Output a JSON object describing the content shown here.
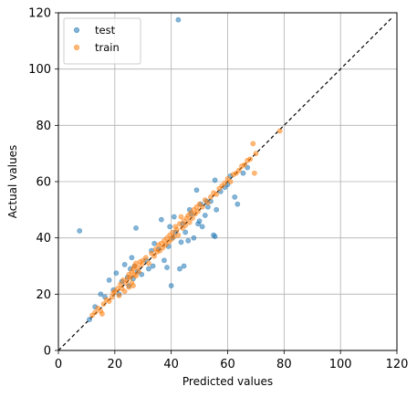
{
  "chart_data": {
    "type": "scatter",
    "title": "",
    "xlabel": "Predicted values",
    "ylabel": "Actual values",
    "xlim": [
      0,
      120
    ],
    "ylim": [
      0,
      120
    ],
    "xticks": [
      "0",
      "20",
      "40",
      "60",
      "80",
      "100",
      "120"
    ],
    "yticks": [
      "0",
      "20",
      "40",
      "60",
      "80",
      "100",
      "120"
    ],
    "grid": true,
    "legend_position": "top-left",
    "reference_line": {
      "style": "dashed",
      "color": "#000000",
      "from": [
        0,
        0
      ],
      "to": [
        118,
        118
      ]
    },
    "series": [
      {
        "name": "test",
        "color": "#1f77b4",
        "points": [
          [
            7.5,
            42.5
          ],
          [
            11,
            11
          ],
          [
            13,
            15.5
          ],
          [
            15,
            20
          ],
          [
            16.5,
            19
          ],
          [
            18,
            25
          ],
          [
            19.5,
            21.5
          ],
          [
            20.5,
            27.5
          ],
          [
            21.5,
            20
          ],
          [
            22.5,
            24.5
          ],
          [
            23.5,
            30.5
          ],
          [
            24.5,
            26
          ],
          [
            25,
            23
          ],
          [
            25.5,
            29
          ],
          [
            26,
            33
          ],
          [
            26.5,
            25.5
          ],
          [
            27,
            30
          ],
          [
            27.5,
            43.5
          ],
          [
            28,
            28
          ],
          [
            29.5,
            27
          ],
          [
            31,
            32
          ],
          [
            32,
            29
          ],
          [
            33,
            35.5
          ],
          [
            33.5,
            30
          ],
          [
            34,
            38
          ],
          [
            35.5,
            36
          ],
          [
            36.5,
            46.5
          ],
          [
            37.5,
            32
          ],
          [
            38.5,
            29.5
          ],
          [
            39,
            37
          ],
          [
            39.5,
            44
          ],
          [
            40,
            23
          ],
          [
            40.5,
            40
          ],
          [
            41,
            47.5
          ],
          [
            41.5,
            42
          ],
          [
            42.5,
            117.5
          ],
          [
            43,
            29
          ],
          [
            43.5,
            38.5
          ],
          [
            44,
            45
          ],
          [
            44.5,
            30
          ],
          [
            45,
            42
          ],
          [
            46,
            39
          ],
          [
            46.5,
            50
          ],
          [
            47,
            48.5
          ],
          [
            48,
            40
          ],
          [
            49,
            57
          ],
          [
            49.5,
            45
          ],
          [
            50,
            46
          ],
          [
            50.5,
            52
          ],
          [
            51,
            44
          ],
          [
            52,
            48
          ],
          [
            52.5,
            53
          ],
          [
            53,
            51
          ],
          [
            54,
            53
          ],
          [
            55,
            41
          ],
          [
            55.5,
            40.5
          ],
          [
            55.5,
            60.5
          ],
          [
            56,
            50
          ],
          [
            57.5,
            56.5
          ],
          [
            59,
            58
          ],
          [
            60,
            59
          ],
          [
            61,
            62
          ],
          [
            62.5,
            54.5
          ],
          [
            63.5,
            52
          ],
          [
            65.5,
            63
          ],
          [
            67,
            65
          ]
        ]
      },
      {
        "name": "train",
        "color": "#ff7f0e",
        "points": [
          [
            12,
            12.5
          ],
          [
            13,
            13.5
          ],
          [
            14,
            15
          ],
          [
            15,
            14
          ],
          [
            15.5,
            13
          ],
          [
            16,
            16.5
          ],
          [
            17,
            18
          ],
          [
            18,
            17.5
          ],
          [
            19,
            19
          ],
          [
            19.5,
            20.5
          ],
          [
            20,
            21
          ],
          [
            21,
            22
          ],
          [
            21.5,
            19.5
          ],
          [
            22,
            23.5
          ],
          [
            22.5,
            22
          ],
          [
            23,
            25
          ],
          [
            23.5,
            21
          ],
          [
            24,
            24
          ],
          [
            24.5,
            25.5
          ],
          [
            25,
            27
          ],
          [
            25,
            22.5
          ],
          [
            25.5,
            26
          ],
          [
            26,
            28
          ],
          [
            26,
            24
          ],
          [
            26.5,
            29
          ],
          [
            26.5,
            23
          ],
          [
            27,
            30
          ],
          [
            27,
            27
          ],
          [
            27.5,
            26.5
          ],
          [
            27.5,
            31
          ],
          [
            28,
            29.5
          ],
          [
            28.5,
            28
          ],
          [
            29,
            31.5
          ],
          [
            29.5,
            30.5
          ],
          [
            30,
            32
          ],
          [
            31,
            33
          ],
          [
            32,
            31
          ],
          [
            33,
            34.5
          ],
          [
            34,
            33.5
          ],
          [
            34.5,
            36
          ],
          [
            35,
            35
          ],
          [
            35.5,
            37.5
          ],
          [
            36,
            35.5
          ],
          [
            36.5,
            38
          ],
          [
            37,
            36.5
          ],
          [
            37.5,
            39
          ],
          [
            38,
            37.5
          ],
          [
            38.5,
            40
          ],
          [
            39,
            38.5
          ],
          [
            39.5,
            41
          ],
          [
            40,
            39.5
          ],
          [
            40.5,
            42
          ],
          [
            41,
            40.5
          ],
          [
            41.5,
            44
          ],
          [
            42,
            43
          ],
          [
            42.5,
            41
          ],
          [
            43,
            45
          ],
          [
            43.5,
            47.5
          ],
          [
            44,
            43.5
          ],
          [
            44.5,
            46
          ],
          [
            45,
            44.5
          ],
          [
            45.5,
            47
          ],
          [
            46,
            48
          ],
          [
            46.5,
            45.5
          ],
          [
            47,
            49
          ],
          [
            47.5,
            47
          ],
          [
            48,
            50
          ],
          [
            48.5,
            48.5
          ],
          [
            49,
            51
          ],
          [
            49.5,
            49.5
          ],
          [
            50,
            52
          ],
          [
            51,
            51
          ],
          [
            52,
            53.5
          ],
          [
            53,
            52.5
          ],
          [
            54,
            54.5
          ],
          [
            55,
            56
          ],
          [
            56,
            55.5
          ],
          [
            57,
            57.5
          ],
          [
            58,
            58.5
          ],
          [
            59,
            59.5
          ],
          [
            60,
            61
          ],
          [
            61,
            60
          ],
          [
            62,
            62.5
          ],
          [
            63,
            63
          ],
          [
            64,
            64
          ],
          [
            65,
            65.5
          ],
          [
            66,
            66
          ],
          [
            67,
            67.5
          ],
          [
            68,
            68
          ],
          [
            69,
            73.5
          ],
          [
            69.5,
            63
          ],
          [
            70,
            70
          ],
          [
            78.5,
            78
          ]
        ]
      }
    ]
  }
}
